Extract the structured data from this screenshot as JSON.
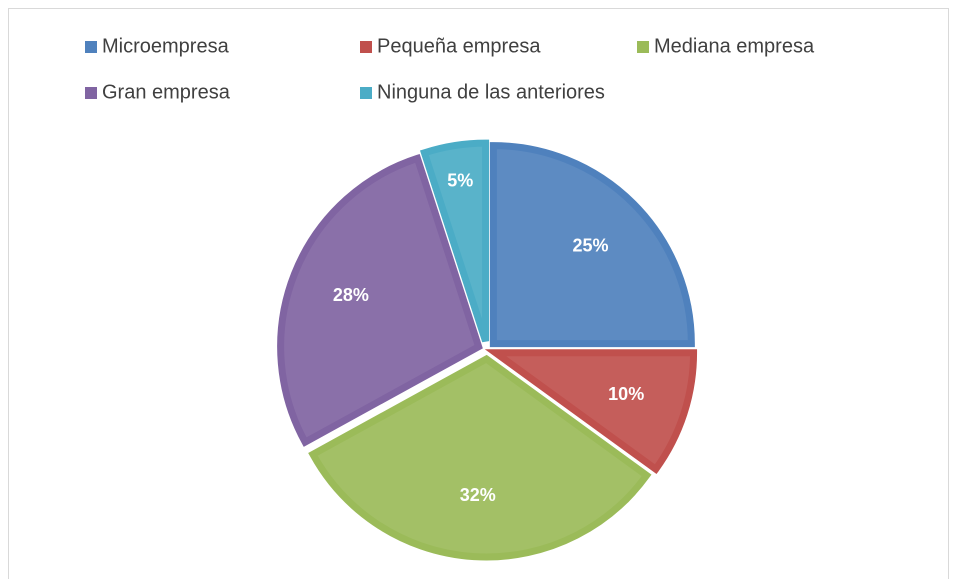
{
  "chart_data": {
    "type": "pie",
    "categories": [
      "Microempresa",
      "Pequeña empresa",
      "Mediana empresa",
      "Gran empresa",
      "Ninguna de las anteriores"
    ],
    "values": [
      25,
      10,
      32,
      28,
      5
    ],
    "value_labels": [
      "25%",
      "10%",
      "32%",
      "28%",
      "5%"
    ],
    "colors": [
      "#4f81bd",
      "#c0504d",
      "#9bbb59",
      "#8064a2",
      "#4bacc6"
    ],
    "legend": "top"
  }
}
